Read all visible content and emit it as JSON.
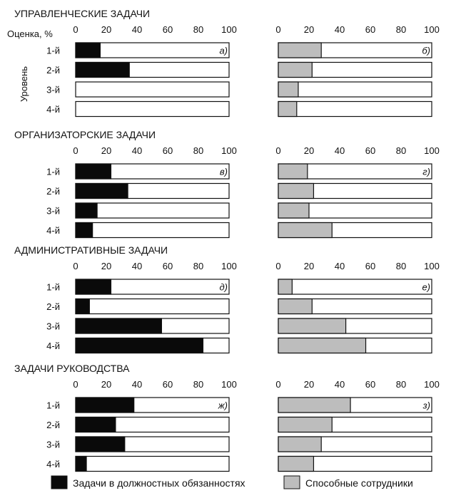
{
  "figure": {
    "estimate_label": "Оценка, %",
    "level_label": "Уровень",
    "legend": {
      "black_label": "Задачи в должностных обязанностях",
      "gray_label": "Способные сотрудники"
    }
  },
  "colors": {
    "duties": "#0a0a0a",
    "capable": "#bdbdbd",
    "bar_background": "#ffffff",
    "outline": "#111111"
  },
  "chart_data": [
    {
      "section": "УПРАВЛЕНЧЕСКИЕ ЗАДАЧИ",
      "panels": [
        {
          "type": "bar",
          "orientation": "horizontal",
          "panel_label": "а)",
          "series": "duties",
          "categories": [
            "1-й",
            "2-й",
            "3-й",
            "4-й"
          ],
          "values": [
            16,
            35,
            0,
            0
          ],
          "xlim": [
            0,
            100
          ],
          "xticks": [
            0,
            20,
            40,
            60,
            80,
            100
          ]
        },
        {
          "type": "bar",
          "orientation": "horizontal",
          "panel_label": "б)",
          "series": "capable",
          "categories": [
            "1-й",
            "2-й",
            "3-й",
            "4-й"
          ],
          "values": [
            28,
            22,
            13,
            12
          ],
          "xlim": [
            0,
            100
          ],
          "xticks": [
            0,
            20,
            40,
            60,
            80,
            100
          ]
        }
      ]
    },
    {
      "section": "ОРГАНИЗАТОРСКИЕ ЗАДАЧИ",
      "panels": [
        {
          "type": "bar",
          "orientation": "horizontal",
          "panel_label": "в)",
          "series": "duties",
          "categories": [
            "1-й",
            "2-й",
            "3-й",
            "4-й"
          ],
          "values": [
            23,
            34,
            14,
            11
          ],
          "xlim": [
            0,
            100
          ],
          "xticks": [
            0,
            20,
            40,
            60,
            80,
            100
          ]
        },
        {
          "type": "bar",
          "orientation": "horizontal",
          "panel_label": "г)",
          "series": "capable",
          "categories": [
            "1-й",
            "2-й",
            "3-й",
            "4-й"
          ],
          "values": [
            19,
            23,
            20,
            35
          ],
          "xlim": [
            0,
            100
          ],
          "xticks": [
            0,
            20,
            40,
            60,
            80,
            100
          ]
        }
      ]
    },
    {
      "section": "АДМИНИСТРАТИВНЫЕ ЗАДАЧИ",
      "panels": [
        {
          "type": "bar",
          "orientation": "horizontal",
          "panel_label": "д)",
          "series": "duties",
          "categories": [
            "1-й",
            "2-й",
            "3-й",
            "4-й"
          ],
          "values": [
            23,
            9,
            56,
            83
          ],
          "xlim": [
            0,
            100
          ],
          "xticks": [
            0,
            20,
            40,
            60,
            80,
            100
          ]
        },
        {
          "type": "bar",
          "orientation": "horizontal",
          "panel_label": "е)",
          "series": "capable",
          "categories": [
            "1-й",
            "2-й",
            "3-й",
            "4-й"
          ],
          "values": [
            9,
            22,
            44,
            57
          ],
          "xlim": [
            0,
            100
          ],
          "xticks": [
            0,
            20,
            40,
            60,
            80,
            100
          ]
        }
      ]
    },
    {
      "section": "ЗАДАЧИ РУКОВОДСТВА",
      "panels": [
        {
          "type": "bar",
          "orientation": "horizontal",
          "panel_label": "ж)",
          "series": "duties",
          "categories": [
            "1-й",
            "2-й",
            "3-й",
            "4-й"
          ],
          "values": [
            38,
            26,
            32,
            7
          ],
          "xlim": [
            0,
            100
          ],
          "xticks": [
            0,
            20,
            40,
            60,
            80,
            100
          ]
        },
        {
          "type": "bar",
          "orientation": "horizontal",
          "panel_label": "з)",
          "series": "capable",
          "categories": [
            "1-й",
            "2-й",
            "3-й",
            "4-й"
          ],
          "values": [
            47,
            35,
            28,
            23
          ],
          "xlim": [
            0,
            100
          ],
          "xticks": [
            0,
            20,
            40,
            60,
            80,
            100
          ]
        }
      ]
    }
  ]
}
